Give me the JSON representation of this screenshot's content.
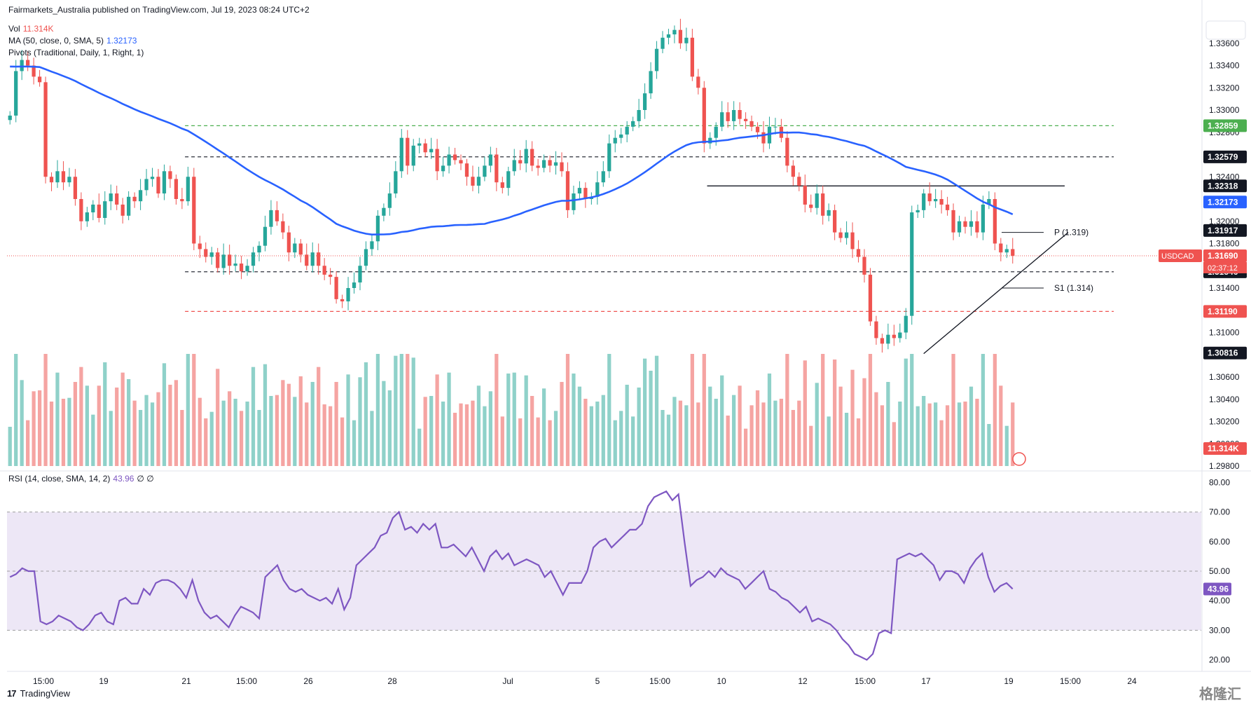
{
  "header": {
    "published": "Fairmarkets_Australia published on TradingView.com, Jul 19, 2023 08:24 UTC+2",
    "vol_label": "Vol",
    "vol_value": "11.314K",
    "ma_label": "MA (50, close, 0, SMA, 5)",
    "ma_value": "1.32173",
    "pivots_label": "Pivots (Traditional, Daily, 1, Right, 1)",
    "rsi_label": "RSI (14, close, SMA, 14, 2)",
    "rsi_value": "43.96",
    "rsi_extra": "∅ ∅"
  },
  "footer": {
    "brand": "TradingView",
    "watermark": "格隆汇"
  },
  "colors": {
    "up": "#26a69a",
    "down": "#ef5350",
    "ma": "#2962ff",
    "rsi": "#7e57c2",
    "rsi_band": "#ede7f6"
  },
  "chart_data": [
    {
      "type": "candlestick",
      "symbol": "USDCAD",
      "last_price": "1.31690",
      "countdown": "02:37:12",
      "ylim": [
        1.298,
        1.338
      ],
      "y_ticks": [
        "1.33600",
        "1.33400",
        "1.33200",
        "1.33000",
        "1.32800",
        "1.32600",
        "1.32400",
        "1.32200",
        "1.32000",
        "1.31800",
        "1.31600",
        "1.31400",
        "1.31200",
        "1.31000",
        "1.30800",
        "1.30600",
        "1.30400",
        "1.30200",
        "1.30000",
        "1.29800"
      ],
      "price_labels": [
        {
          "value": "1.32859",
          "color": "#4caf50"
        },
        {
          "value": "1.32579",
          "color": "#131722"
        },
        {
          "value": "1.32318",
          "color": "#131722"
        },
        {
          "value": "1.32173",
          "color": "#2962ff"
        },
        {
          "value": "1.31917",
          "color": "#131722"
        },
        {
          "value": "1.31690",
          "color": "#ef5350"
        },
        {
          "value": "1.31546",
          "color": "#131722"
        },
        {
          "value": "1.31190",
          "color": "#ef5350"
        },
        {
          "value": "1.30816",
          "color": "#131722"
        }
      ],
      "x_ticks": [
        "15:00",
        "19",
        "21",
        "15:00",
        "26",
        "28",
        "Jul",
        "5",
        "15:00",
        "10",
        "12",
        "15:00",
        "17",
        "19",
        "15:00",
        "24"
      ],
      "levels": [
        {
          "value": 1.32859,
          "style": "dashed",
          "color": "#4caf50"
        },
        {
          "value": 1.32579,
          "style": "dashed",
          "color": "#131722"
        },
        {
          "value": 1.31546,
          "style": "dashed",
          "color": "#131722"
        },
        {
          "value": 1.3119,
          "style": "dashed",
          "color": "#ef5350"
        },
        {
          "value": 1.32318,
          "style": "solid",
          "color": "#131722"
        }
      ],
      "pivots": [
        {
          "label": "P (1.319)",
          "value": 1.319
        },
        {
          "label": "S1 (1.314)",
          "value": 1.314
        }
      ],
      "trendline": {
        "from": [
          1.3081,
          "Jul 14"
        ],
        "to": [
          1.319,
          "Jul 19"
        ]
      },
      "closes": [
        1.3295,
        1.3335,
        1.3345,
        1.334,
        1.333,
        1.3325,
        1.324,
        1.3235,
        1.3245,
        1.3235,
        1.324,
        1.322,
        1.32,
        1.3208,
        1.3215,
        1.3203,
        1.3218,
        1.3225,
        1.3215,
        1.3205,
        1.3222,
        1.3218,
        1.3228,
        1.3238,
        1.324,
        1.3225,
        1.3245,
        1.3238,
        1.322,
        1.3218,
        1.324,
        1.318,
        1.3175,
        1.3168,
        1.3172,
        1.3158,
        1.317,
        1.316,
        1.3162,
        1.3155,
        1.316,
        1.3172,
        1.3178,
        1.3195,
        1.321,
        1.32,
        1.319,
        1.3172,
        1.318,
        1.317,
        1.316,
        1.3172,
        1.316,
        1.3152,
        1.315,
        1.313,
        1.3128,
        1.314,
        1.3145,
        1.316,
        1.3175,
        1.3182,
        1.3205,
        1.3212,
        1.3225,
        1.3245,
        1.3275,
        1.325,
        1.3268,
        1.327,
        1.3262,
        1.3265,
        1.3245,
        1.325,
        1.326,
        1.3255,
        1.3252,
        1.324,
        1.3232,
        1.324,
        1.325,
        1.326,
        1.3235,
        1.323,
        1.3245,
        1.3255,
        1.3252,
        1.3265,
        1.325,
        1.3248,
        1.3255,
        1.325,
        1.3253,
        1.3245,
        1.321,
        1.3225,
        1.323,
        1.322,
        1.3222,
        1.3235,
        1.3245,
        1.327,
        1.3275,
        1.3278,
        1.3285,
        1.329,
        1.33,
        1.3315,
        1.3335,
        1.3355,
        1.3365,
        1.3368,
        1.3372,
        1.336,
        1.3365,
        1.333,
        1.332,
        1.327,
        1.3275,
        1.3285,
        1.3298,
        1.329,
        1.33,
        1.3292,
        1.329,
        1.3285,
        1.328,
        1.327,
        1.3285,
        1.3285,
        1.3275,
        1.325,
        1.324,
        1.3232,
        1.3215,
        1.3212,
        1.3225,
        1.3205,
        1.321,
        1.319,
        1.3185,
        1.319,
        1.3175,
        1.3168,
        1.3152,
        1.311,
        1.3095,
        1.309,
        1.3098,
        1.3095,
        1.31,
        1.3115,
        1.3208,
        1.321,
        1.3225,
        1.3218,
        1.322,
        1.3215,
        1.321,
        1.319,
        1.32,
        1.3195,
        1.32,
        1.319,
        1.3215,
        1.322,
        1.318,
        1.3172,
        1.3175,
        1.3169
      ],
      "ma50": {
        "start_index": 0,
        "note": "blue SMA line"
      },
      "volume_max_hint": "relative"
    },
    {
      "type": "line",
      "name": "RSI (14, close, SMA, 14, 2)",
      "ylim": [
        18,
        82
      ],
      "y_ticks": [
        "80.00",
        "70.00",
        "60.00",
        "50.00",
        "40.00",
        "30.00",
        "20.00"
      ],
      "band": [
        30,
        70
      ],
      "midline": 50,
      "last_value": "43.96",
      "values": [
        48,
        49,
        51,
        50,
        50,
        33,
        32,
        33,
        35,
        34,
        33,
        31,
        30,
        32,
        35,
        36,
        33,
        32,
        40,
        41,
        39,
        39,
        44,
        42,
        46,
        47,
        47,
        46,
        44,
        41,
        47,
        40,
        36,
        34,
        35,
        33,
        31,
        35,
        38,
        37,
        36,
        34,
        48,
        50,
        52,
        47,
        44,
        43,
        44,
        42,
        41,
        40,
        41,
        39,
        44,
        37,
        41,
        52,
        54,
        56,
        58,
        62,
        63,
        68,
        70,
        64,
        65,
        63,
        66,
        64,
        66,
        58,
        58,
        59,
        57,
        55,
        58,
        54,
        50,
        55,
        57,
        54,
        56,
        52,
        53,
        54,
        53,
        52,
        48,
        50,
        46,
        42,
        46,
        46,
        46,
        50,
        58,
        60,
        61,
        58,
        60,
        62,
        64,
        64,
        66,
        72,
        75,
        76,
        77,
        74,
        76,
        60,
        45,
        47,
        48,
        50,
        48,
        51,
        49,
        48,
        47,
        44,
        46,
        48,
        50,
        44,
        43,
        41,
        40,
        38,
        36,
        38,
        33,
        34,
        33,
        32,
        30,
        27,
        25,
        22,
        21,
        20,
        22,
        29,
        30,
        29,
        54,
        55,
        56,
        55,
        56,
        54,
        52,
        47,
        50,
        50,
        49,
        46,
        51,
        54,
        56,
        48,
        43,
        45,
        46,
        44
      ]
    }
  ]
}
